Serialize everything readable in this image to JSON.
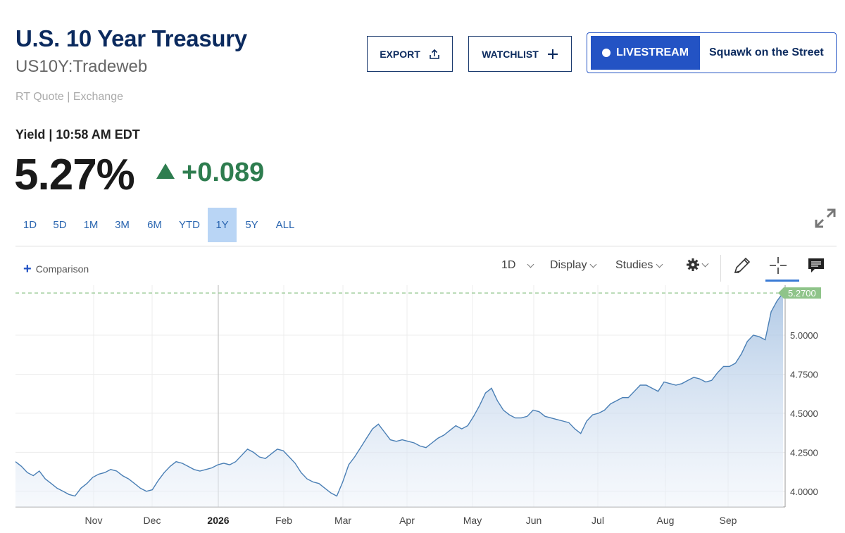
{
  "header": {
    "title": "U.S. 10 Year Treasury",
    "symbol": "US10Y:Tradeweb",
    "quote_source": "RT Quote | Exchange",
    "yield_time": "Yield | 10:58 AM EDT",
    "price": "5.27%",
    "change": "+0.089"
  },
  "actions": {
    "export_label": "EXPORT",
    "watchlist_label": "WATCHLIST",
    "livestream_label": "LIVESTREAM",
    "show_name": "Squawk on the Street"
  },
  "ranges": {
    "items": [
      "1D",
      "5D",
      "1M",
      "3M",
      "6M",
      "YTD",
      "1Y",
      "5Y",
      "ALL"
    ],
    "active": "1Y"
  },
  "toolbar": {
    "comparison_label": "Comparison",
    "interval_label": "1D",
    "display_label": "Display",
    "studies_label": "Studies"
  },
  "icons": [
    "upload-icon",
    "plus-icon",
    "live-dot-icon",
    "expand-icon",
    "gear-icon",
    "chevron-down-icon",
    "pencil-icon",
    "crosshair-icon",
    "comment-icon"
  ],
  "colors": {
    "accent": "#2353c4",
    "positive": "#2e7d4f",
    "line": "#4a7fb5",
    "last_label_bg": "#8fc48a"
  },
  "chart_data": {
    "type": "area",
    "x_ticks": [
      "Nov",
      "Dec",
      "2026",
      "Feb",
      "Mar",
      "Apr",
      "May",
      "Jun",
      "Jul",
      "Aug",
      "Sep"
    ],
    "y_ticks": [
      "4.0000",
      "4.2500",
      "4.5000",
      "4.7500",
      "5.0000"
    ],
    "ylim": [
      3.9,
      5.32
    ],
    "last_value": 5.27,
    "last_value_label": "5.2700",
    "grid": true,
    "series": [
      {
        "values": [
          4.19,
          4.16,
          4.12,
          4.1,
          4.13,
          4.08,
          4.05,
          4.02,
          4,
          3.98,
          3.97,
          4.02,
          4.05,
          4.09,
          4.11,
          4.12,
          4.14,
          4.13,
          4.1,
          4.08,
          4.05,
          4.02,
          4,
          4.01,
          4.07,
          4.12,
          4.16,
          4.19,
          4.18,
          4.16,
          4.14,
          4.13,
          4.14,
          4.15,
          4.17,
          4.18,
          4.17,
          4.19,
          4.23,
          4.27,
          4.25,
          4.22,
          4.21,
          4.24,
          4.27,
          4.26,
          4.22,
          4.18,
          4.12,
          4.08,
          4.06,
          4.05,
          4.02,
          3.99,
          3.97,
          4.06,
          4.17,
          4.22,
          4.28,
          4.34,
          4.4,
          4.43,
          4.38,
          4.33,
          4.32,
          4.33,
          4.32,
          4.31,
          4.29,
          4.28,
          4.31,
          4.34,
          4.36,
          4.39,
          4.42,
          4.4,
          4.42,
          4.48,
          4.55,
          4.63,
          4.66,
          4.58,
          4.52,
          4.49,
          4.47,
          4.47,
          4.48,
          4.52,
          4.51,
          4.48,
          4.47,
          4.46,
          4.45,
          4.44,
          4.4,
          4.37,
          4.45,
          4.49,
          4.5,
          4.52,
          4.56,
          4.58,
          4.6,
          4.6,
          4.64,
          4.68,
          4.68,
          4.66,
          4.64,
          4.7,
          4.69,
          4.68,
          4.69,
          4.71,
          4.73,
          4.72,
          4.7,
          4.71,
          4.76,
          4.8,
          4.8,
          4.82,
          4.88,
          4.96,
          5.0,
          4.99,
          4.97,
          5.15,
          5.22,
          5.27
        ]
      }
    ]
  }
}
